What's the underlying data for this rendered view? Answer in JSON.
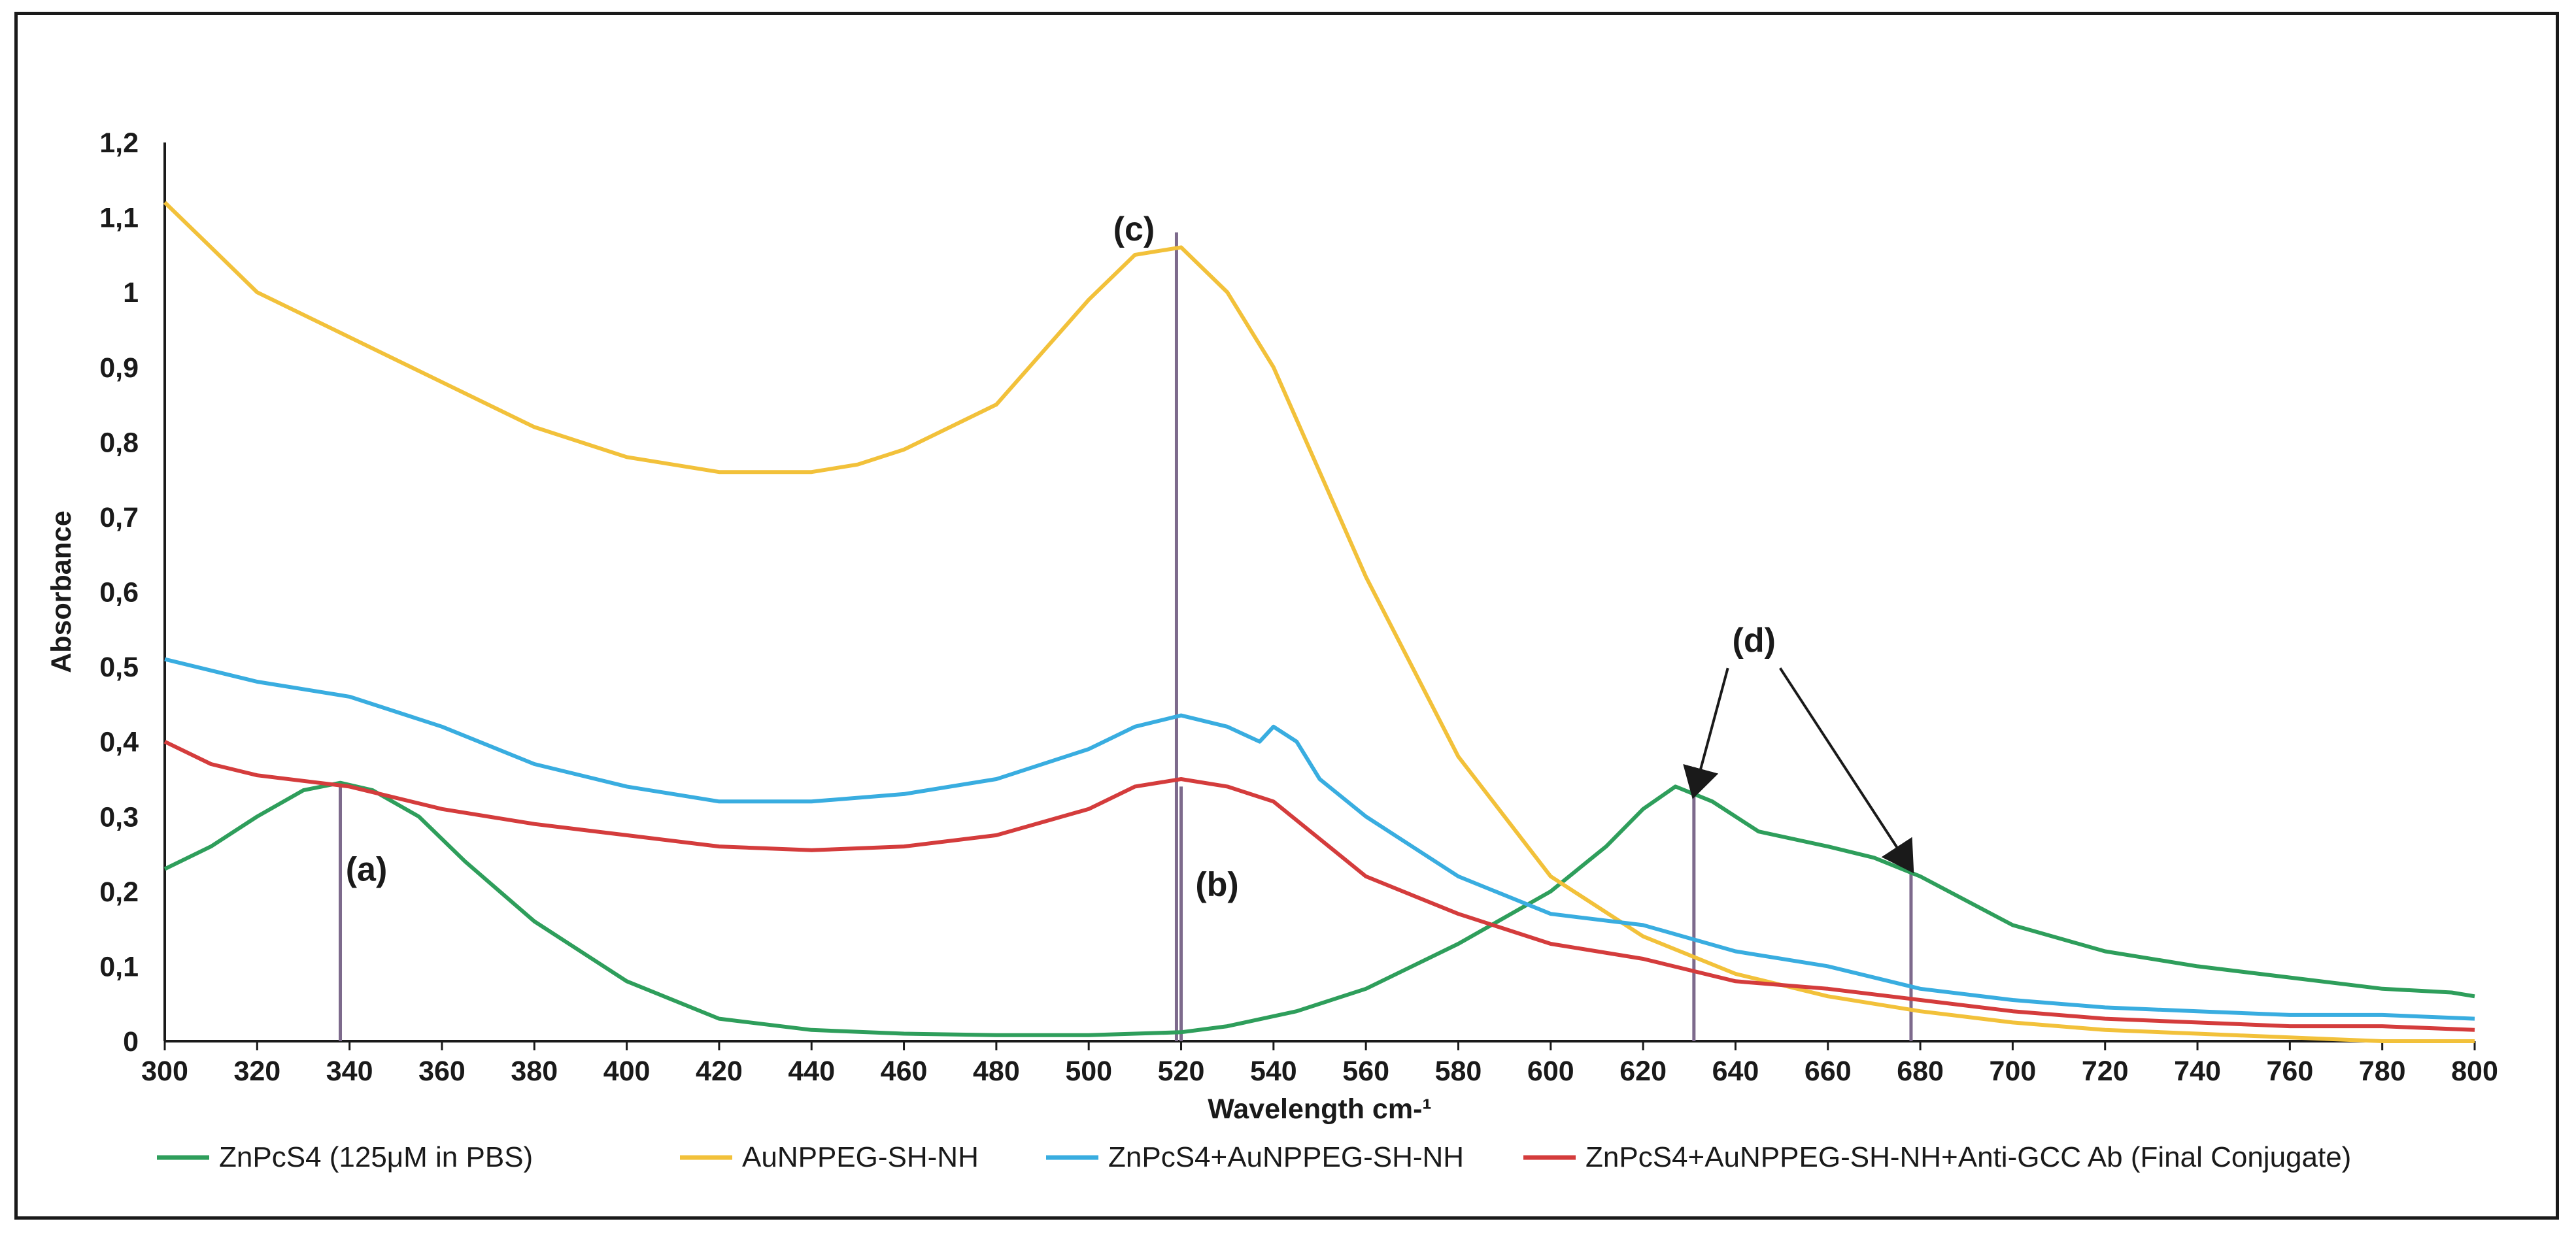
{
  "chart_data": {
    "type": "line",
    "title": "",
    "xlabel": "Wavelength cm-¹",
    "ylabel": "Absorbance",
    "xlim": [
      300,
      800
    ],
    "ylim": [
      0,
      1.2
    ],
    "x_ticks": [
      "300",
      "320",
      "340",
      "360",
      "380",
      "400",
      "420",
      "440",
      "460",
      "480",
      "500",
      "520",
      "540",
      "560",
      "580",
      "600",
      "620",
      "640",
      "660",
      "680",
      "700",
      "720",
      "740",
      "760",
      "780",
      "800"
    ],
    "y_ticks": [
      "0",
      "0,1",
      "0,2",
      "0,3",
      "0,4",
      "0,5",
      "0,6",
      "0,7",
      "0,8",
      "0,9",
      "1",
      "1,1",
      "1,2"
    ],
    "series": [
      {
        "name": "ZnPcS4 (125μM in PBS)",
        "color": "#2e9e5b",
        "x": [
          300,
          310,
          320,
          330,
          338,
          345,
          355,
          365,
          380,
          400,
          420,
          440,
          460,
          480,
          500,
          510,
          520,
          530,
          545,
          560,
          580,
          600,
          612,
          620,
          627,
          635,
          645,
          660,
          670,
          680,
          700,
          720,
          740,
          760,
          780,
          795,
          800
        ],
        "y": [
          0.23,
          0.26,
          0.3,
          0.335,
          0.345,
          0.335,
          0.3,
          0.24,
          0.16,
          0.08,
          0.03,
          0.015,
          0.01,
          0.008,
          0.008,
          0.01,
          0.012,
          0.02,
          0.04,
          0.07,
          0.13,
          0.2,
          0.26,
          0.31,
          0.34,
          0.32,
          0.28,
          0.26,
          0.245,
          0.22,
          0.155,
          0.12,
          0.1,
          0.085,
          0.07,
          0.065,
          0.06
        ]
      },
      {
        "name": "AuNPPEG-SH-NH",
        "color": "#f2c13a",
        "x": [
          300,
          310,
          320,
          340,
          360,
          380,
          400,
          420,
          440,
          450,
          460,
          480,
          490,
          500,
          510,
          520,
          530,
          540,
          550,
          560,
          580,
          600,
          620,
          640,
          660,
          680,
          700,
          720,
          740,
          760,
          780,
          800
        ],
        "y": [
          1.12,
          1.06,
          1.0,
          0.94,
          0.88,
          0.82,
          0.78,
          0.76,
          0.76,
          0.77,
          0.79,
          0.85,
          0.92,
          0.99,
          1.05,
          1.06,
          1.0,
          0.9,
          0.76,
          0.62,
          0.38,
          0.22,
          0.14,
          0.09,
          0.06,
          0.04,
          0.025,
          0.015,
          0.01,
          0.005,
          0.0,
          -0.01
        ]
      },
      {
        "name": "ZnPcS4+AuNPPEG-SH-NH",
        "color": "#39ade0",
        "x": [
          300,
          320,
          340,
          360,
          380,
          400,
          420,
          440,
          460,
          480,
          500,
          510,
          520,
          530,
          537,
          540,
          545,
          550,
          560,
          580,
          600,
          620,
          640,
          660,
          680,
          700,
          720,
          740,
          760,
          780,
          800
        ],
        "y": [
          0.51,
          0.48,
          0.46,
          0.42,
          0.37,
          0.34,
          0.32,
          0.32,
          0.33,
          0.35,
          0.39,
          0.42,
          0.435,
          0.42,
          0.4,
          0.42,
          0.4,
          0.35,
          0.3,
          0.22,
          0.17,
          0.155,
          0.12,
          0.1,
          0.07,
          0.055,
          0.045,
          0.04,
          0.035,
          0.035,
          0.03
        ]
      },
      {
        "name": "ZnPcS4+AuNPPEG-SH-NH+Anti-GCC Ab (Final Conjugate)",
        "color": "#d43c3c",
        "x": [
          300,
          310,
          320,
          340,
          360,
          380,
          400,
          420,
          440,
          460,
          480,
          500,
          510,
          520,
          530,
          540,
          550,
          560,
          580,
          600,
          620,
          640,
          660,
          680,
          700,
          720,
          740,
          760,
          780,
          800
        ],
        "y": [
          0.4,
          0.37,
          0.355,
          0.34,
          0.31,
          0.29,
          0.275,
          0.26,
          0.255,
          0.26,
          0.275,
          0.31,
          0.34,
          0.35,
          0.34,
          0.32,
          0.27,
          0.22,
          0.17,
          0.13,
          0.11,
          0.08,
          0.07,
          0.055,
          0.04,
          0.03,
          0.025,
          0.02,
          0.02,
          0.015
        ]
      }
    ],
    "markers": [
      {
        "label": "(a)",
        "x": 338,
        "y_top": 0.34
      },
      {
        "label": "(b)",
        "x": 520,
        "y_top": 0.34
      },
      {
        "label": "(c)",
        "x": 519,
        "y_top": 1.08
      },
      {
        "label": "",
        "x": 631,
        "y_top": 0.33
      },
      {
        "label": "",
        "x": 678,
        "y_top": 0.23
      }
    ],
    "arrow_annotation": {
      "label": "(d)",
      "targets": [
        {
          "x": 631,
          "y": 0.33
        },
        {
          "x": 678,
          "y": 0.23
        }
      ]
    },
    "legend_position": "bottom"
  }
}
